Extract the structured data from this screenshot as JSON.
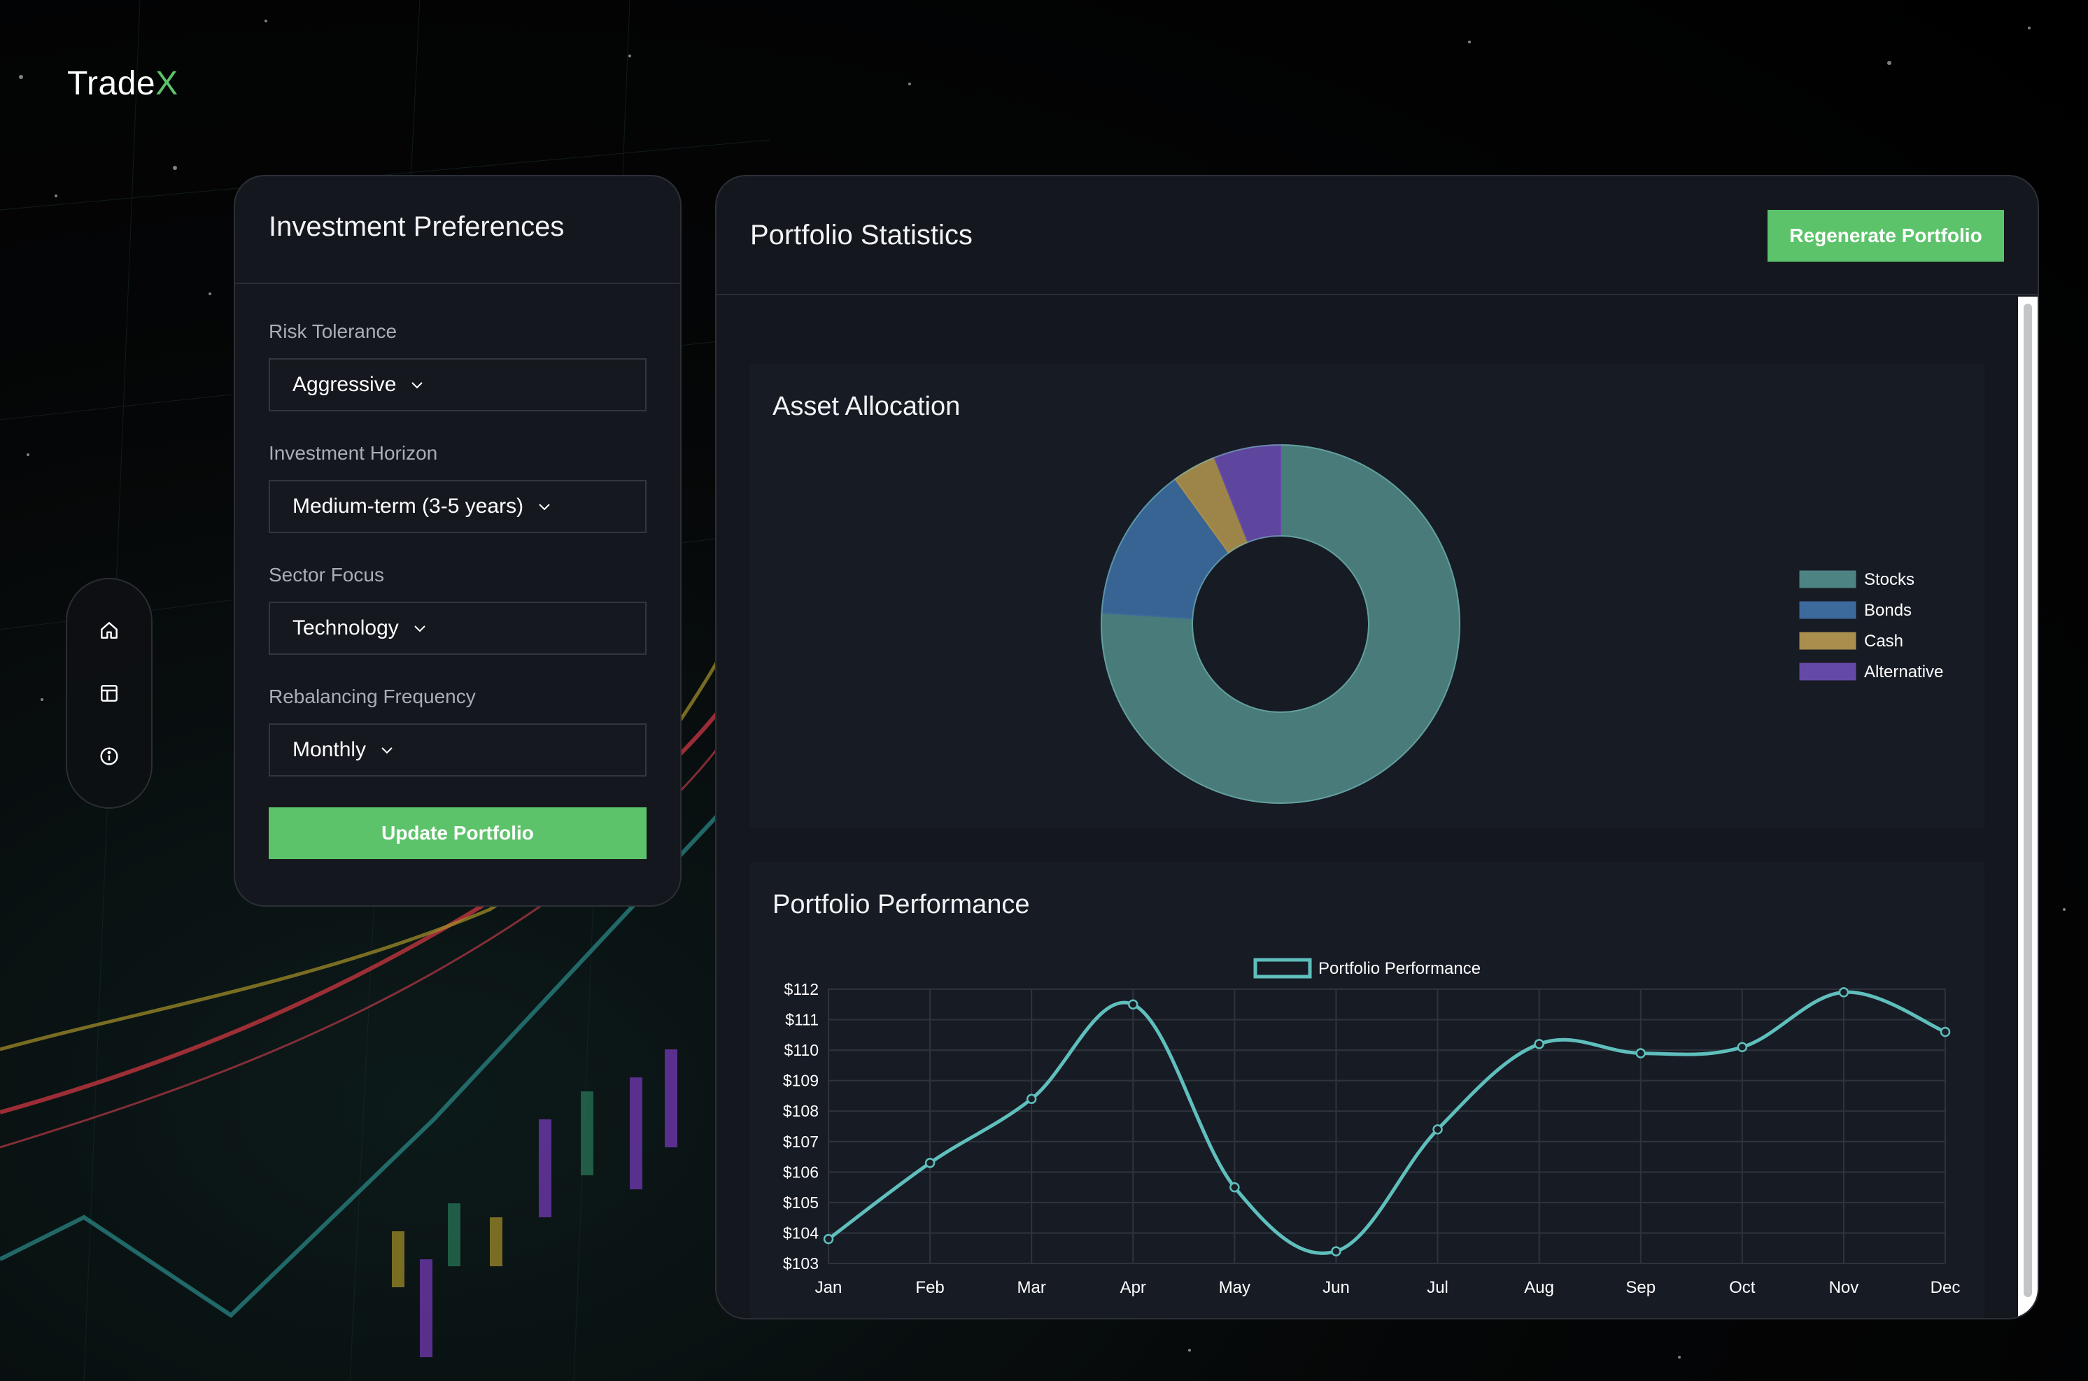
{
  "app": {
    "logo_main": "Trade",
    "logo_accent": "X"
  },
  "nav": {
    "items": [
      {
        "name": "home",
        "icon": "home-icon"
      },
      {
        "name": "dashboard",
        "icon": "layout-icon"
      },
      {
        "name": "info",
        "icon": "info-icon"
      }
    ]
  },
  "preferences": {
    "title": "Investment Preferences",
    "fields": [
      {
        "label": "Risk Tolerance",
        "value": "Aggressive"
      },
      {
        "label": "Investment Horizon",
        "value": "Medium-term (3-5 years)"
      },
      {
        "label": "Sector Focus",
        "value": "Technology"
      },
      {
        "label": "Rebalancing Frequency",
        "value": "Monthly"
      }
    ],
    "update_label": "Update Portfolio"
  },
  "stats": {
    "title": "Portfolio Statistics",
    "regenerate_label": "Regenerate Portfolio",
    "allocation_title": "Asset Allocation",
    "performance_title": "Portfolio Performance"
  },
  "colors": {
    "accent": "#5cc36a",
    "stocks": "#4e8383",
    "bonds": "#3c6a9d",
    "cash": "#a98e4d",
    "alternative": "#6549a8",
    "line": "#5fbfbd"
  },
  "chart_data": [
    {
      "type": "pie",
      "variant": "donut",
      "title": "Asset Allocation",
      "categories": [
        "Stocks",
        "Bonds",
        "Cash",
        "Alternative"
      ],
      "values": [
        76,
        14,
        4,
        6
      ],
      "legend_position": "right"
    },
    {
      "type": "line",
      "title": "Portfolio Performance",
      "categories": [
        "Jan",
        "Feb",
        "Mar",
        "Apr",
        "May",
        "Jun",
        "Jul",
        "Aug",
        "Sep",
        "Oct",
        "Nov",
        "Dec"
      ],
      "series": [
        {
          "name": "Portfolio Performance",
          "values": [
            103.8,
            106.3,
            108.4,
            111.5,
            105.5,
            103.4,
            107.4,
            110.2,
            109.9,
            110.1,
            111.9,
            110.6
          ]
        }
      ],
      "ylim": [
        103,
        112
      ],
      "yticks": [
        "$112",
        "$111",
        "$110",
        "$109",
        "$108",
        "$107",
        "$106",
        "$105",
        "$104",
        "$103"
      ],
      "grid": true,
      "legend_position": "top"
    }
  ]
}
